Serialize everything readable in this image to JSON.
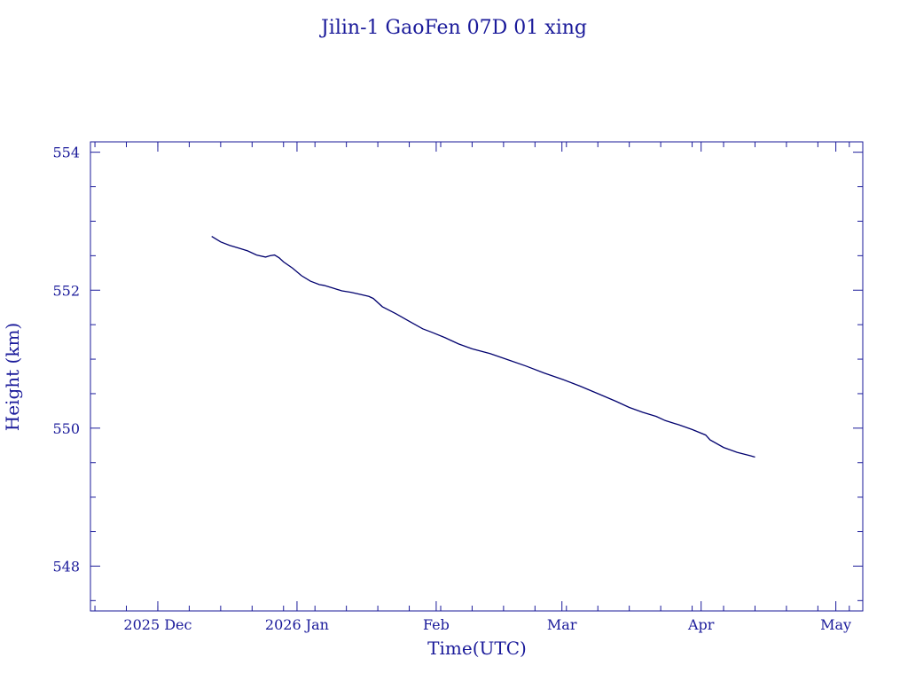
{
  "chart_data": {
    "type": "line",
    "title": "Jilin-1 GaoFen 07D 01 xing",
    "xlabel": "Time(UTC)",
    "ylabel": "Height (km)",
    "xlim": [
      "2025-11-16",
      "2026-05-07"
    ],
    "ylim": [
      547.35,
      554.15
    ],
    "x_ticks": [
      {
        "date": "2025-12-01",
        "label": "2025 Dec"
      },
      {
        "date": "2026-01-01",
        "label": "2026 Jan"
      },
      {
        "date": "2026-02-01",
        "label": "Feb"
      },
      {
        "date": "2026-03-01",
        "label": "Mar"
      },
      {
        "date": "2026-04-01",
        "label": "Apr"
      },
      {
        "date": "2026-05-01",
        "label": "May"
      }
    ],
    "y_ticks": [
      548,
      550,
      552,
      554
    ],
    "y_minor_step": 0.5,
    "x_minor_step_days": 7,
    "line_color": "#00006e",
    "axis_color": "#1a1a9a",
    "series": [
      {
        "x": [
          "2025-12-13",
          "2025-12-14",
          "2025-12-15",
          "2025-12-17",
          "2025-12-19",
          "2025-12-21",
          "2025-12-23",
          "2025-12-25",
          "2025-12-26",
          "2025-12-27",
          "2025-12-28",
          "2025-12-29",
          "2025-12-31",
          "2026-01-02",
          "2026-01-04",
          "2026-01-06",
          "2026-01-07",
          "2026-01-09",
          "2026-01-11",
          "2026-01-13",
          "2026-01-15",
          "2026-01-17",
          "2026-01-18",
          "2026-01-20",
          "2026-01-23",
          "2026-01-26",
          "2026-01-29",
          "2026-01-31",
          "2026-02-03",
          "2026-02-06",
          "2026-02-09",
          "2026-02-13",
          "2026-02-17",
          "2026-02-21",
          "2026-02-25",
          "2026-03-01",
          "2026-03-05",
          "2026-03-09",
          "2026-03-13",
          "2026-03-16",
          "2026-03-19",
          "2026-03-22",
          "2026-03-24",
          "2026-03-27",
          "2026-03-30",
          "2026-04-02",
          "2026-04-03",
          "2026-04-06",
          "2026-04-09",
          "2026-04-12",
          "2026-04-13"
        ],
        "y": [
          552.78,
          552.74,
          552.7,
          552.65,
          552.61,
          552.57,
          552.51,
          552.48,
          552.5,
          552.51,
          552.47,
          552.41,
          552.32,
          552.21,
          552.13,
          552.08,
          552.07,
          552.03,
          551.99,
          551.97,
          551.94,
          551.91,
          551.88,
          551.76,
          551.66,
          551.55,
          551.44,
          551.39,
          551.31,
          551.22,
          551.15,
          551.08,
          550.99,
          550.9,
          550.8,
          550.71,
          550.61,
          550.5,
          550.39,
          550.3,
          550.23,
          550.17,
          550.11,
          550.05,
          549.98,
          549.9,
          549.83,
          549.72,
          549.65,
          549.6,
          549.58
        ]
      }
    ]
  }
}
